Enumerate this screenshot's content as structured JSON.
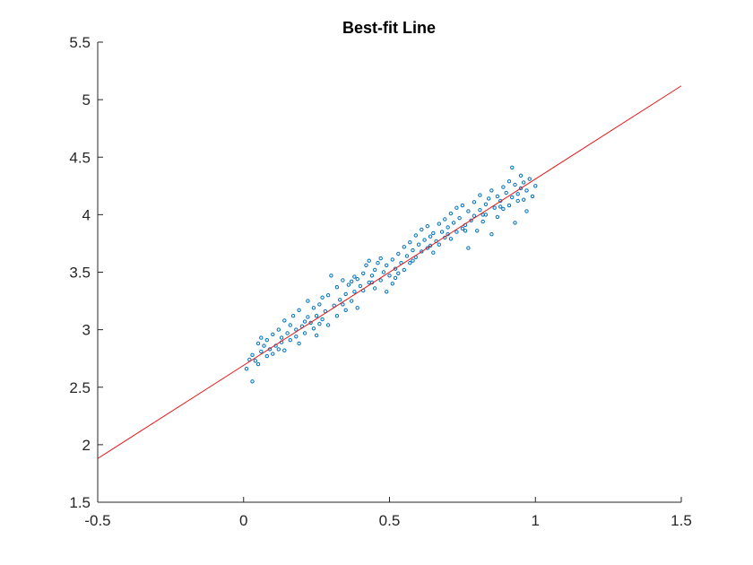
{
  "chart_data": {
    "type": "scatter",
    "title": "Best-fit Line",
    "xlabel": "",
    "ylabel": "",
    "xlim": [
      -0.5,
      1.5
    ],
    "ylim": [
      1.5,
      5.5
    ],
    "xticks": [
      -0.5,
      0,
      0.5,
      1,
      1.5
    ],
    "yticks": [
      1.5,
      2,
      2.5,
      3,
      3.5,
      4,
      4.5,
      5,
      5.5
    ],
    "xtick_labels": [
      "-0.5",
      "0",
      "0.5",
      "1",
      "1.5"
    ],
    "ytick_labels": [
      "1.5",
      "2",
      "2.5",
      "3",
      "3.5",
      "4",
      "4.5",
      "5",
      "5.5"
    ],
    "grid": false,
    "legend": "none",
    "series": [
      {
        "kind": "scatter",
        "color": "#0072BD",
        "points": [
          [
            0.01,
            2.66
          ],
          [
            0.02,
            2.74
          ],
          [
            0.03,
            2.78
          ],
          [
            0.03,
            2.55
          ],
          [
            0.04,
            2.73
          ],
          [
            0.05,
            2.88
          ],
          [
            0.05,
            2.7
          ],
          [
            0.06,
            2.93
          ],
          [
            0.07,
            2.86
          ],
          [
            0.08,
            2.77
          ],
          [
            0.08,
            2.91
          ],
          [
            0.09,
            2.83
          ],
          [
            0.1,
            2.96
          ],
          [
            0.1,
            2.79
          ],
          [
            0.11,
            2.86
          ],
          [
            0.12,
            2.83
          ],
          [
            0.12,
            3.0
          ],
          [
            0.13,
            2.93
          ],
          [
            0.14,
            2.82
          ],
          [
            0.14,
            3.08
          ],
          [
            0.15,
            2.97
          ],
          [
            0.16,
            2.91
          ],
          [
            0.16,
            3.04
          ],
          [
            0.17,
            3.12
          ],
          [
            0.18,
            2.94
          ],
          [
            0.18,
            3.0
          ],
          [
            0.19,
            3.17
          ],
          [
            0.19,
            2.88
          ],
          [
            0.2,
            3.03
          ],
          [
            0.21,
            2.97
          ],
          [
            0.22,
            3.11
          ],
          [
            0.22,
            3.25
          ],
          [
            0.23,
            3.06
          ],
          [
            0.24,
            3.01
          ],
          [
            0.24,
            3.19
          ],
          [
            0.25,
            3.12
          ],
          [
            0.25,
            2.95
          ],
          [
            0.26,
            3.22
          ],
          [
            0.27,
            3.28
          ],
          [
            0.27,
            3.09
          ],
          [
            0.28,
            3.16
          ],
          [
            0.29,
            3.04
          ],
          [
            0.29,
            3.3
          ],
          [
            0.3,
            3.47
          ],
          [
            0.31,
            3.21
          ],
          [
            0.32,
            3.37
          ],
          [
            0.32,
            3.12
          ],
          [
            0.33,
            3.26
          ],
          [
            0.34,
            3.43
          ],
          [
            0.35,
            3.31
          ],
          [
            0.35,
            3.17
          ],
          [
            0.36,
            3.39
          ],
          [
            0.37,
            3.42
          ],
          [
            0.37,
            3.25
          ],
          [
            0.38,
            3.33
          ],
          [
            0.39,
            3.44
          ],
          [
            0.39,
            3.19
          ],
          [
            0.4,
            3.38
          ],
          [
            0.41,
            3.49
          ],
          [
            0.41,
            3.34
          ],
          [
            0.42,
            3.56
          ],
          [
            0.43,
            3.41
          ],
          [
            0.43,
            3.6
          ],
          [
            0.44,
            3.47
          ],
          [
            0.45,
            3.36
          ],
          [
            0.45,
            3.52
          ],
          [
            0.46,
            3.58
          ],
          [
            0.47,
            3.43
          ],
          [
            0.47,
            3.62
          ],
          [
            0.48,
            3.5
          ],
          [
            0.49,
            3.33
          ],
          [
            0.49,
            3.56
          ],
          [
            0.5,
            3.47
          ],
          [
            0.51,
            3.61
          ],
          [
            0.51,
            3.4
          ],
          [
            0.52,
            3.53
          ],
          [
            0.53,
            3.66
          ],
          [
            0.53,
            3.49
          ],
          [
            0.54,
            3.58
          ],
          [
            0.55,
            3.72
          ],
          [
            0.55,
            3.52
          ],
          [
            0.56,
            3.64
          ],
          [
            0.57,
            3.58
          ],
          [
            0.57,
            3.76
          ],
          [
            0.58,
            3.69
          ],
          [
            0.59,
            3.82
          ],
          [
            0.59,
            3.63
          ],
          [
            0.6,
            3.74
          ],
          [
            0.61,
            3.87
          ],
          [
            0.61,
            3.68
          ],
          [
            0.62,
            3.78
          ],
          [
            0.63,
            3.71
          ],
          [
            0.63,
            3.9
          ],
          [
            0.64,
            3.81
          ],
          [
            0.65,
            3.67
          ],
          [
            0.65,
            3.84
          ],
          [
            0.66,
            3.77
          ],
          [
            0.67,
            3.92
          ],
          [
            0.67,
            3.74
          ],
          [
            0.68,
            3.85
          ],
          [
            0.69,
            3.96
          ],
          [
            0.69,
            3.8
          ],
          [
            0.7,
            3.89
          ],
          [
            0.71,
            3.79
          ],
          [
            0.71,
            4.01
          ],
          [
            0.72,
            3.93
          ],
          [
            0.73,
            3.85
          ],
          [
            0.73,
            4.06
          ],
          [
            0.74,
            3.97
          ],
          [
            0.75,
            3.88
          ],
          [
            0.75,
            4.08
          ],
          [
            0.76,
            3.91
          ],
          [
            0.77,
            4.03
          ],
          [
            0.77,
            3.71
          ],
          [
            0.78,
            3.95
          ],
          [
            0.79,
            4.11
          ],
          [
            0.79,
            3.99
          ],
          [
            0.8,
            3.86
          ],
          [
            0.81,
            4.04
          ],
          [
            0.81,
            4.17
          ],
          [
            0.82,
            3.94
          ],
          [
            0.83,
            4.09
          ],
          [
            0.83,
            4.0
          ],
          [
            0.84,
            4.14
          ],
          [
            0.85,
            3.83
          ],
          [
            0.85,
            4.21
          ],
          [
            0.86,
            4.06
          ],
          [
            0.87,
            4.16
          ],
          [
            0.87,
            3.98
          ],
          [
            0.88,
            4.12
          ],
          [
            0.89,
            4.24
          ],
          [
            0.89,
            4.05
          ],
          [
            0.9,
            4.19
          ],
          [
            0.91,
            4.08
          ],
          [
            0.91,
            4.29
          ],
          [
            0.92,
            4.41
          ],
          [
            0.92,
            4.15
          ],
          [
            0.93,
            3.93
          ],
          [
            0.93,
            4.26
          ],
          [
            0.94,
            4.18
          ],
          [
            0.95,
            4.34
          ],
          [
            0.95,
            4.23
          ],
          [
            0.96,
            4.13
          ],
          [
            0.96,
            4.28
          ],
          [
            0.97,
            4.21
          ],
          [
            0.97,
            4.03
          ],
          [
            0.98,
            4.31
          ],
          [
            0.99,
            4.16
          ],
          [
            1.0,
            4.25
          ],
          [
            0.06,
            2.81
          ],
          [
            0.13,
            2.89
          ],
          [
            0.21,
            3.07
          ],
          [
            0.26,
            3.05
          ],
          [
            0.34,
            3.22
          ],
          [
            0.38,
            3.46
          ],
          [
            0.44,
            3.41
          ],
          [
            0.52,
            3.45
          ],
          [
            0.58,
            3.6
          ],
          [
            0.64,
            3.73
          ],
          [
            0.7,
            3.83
          ],
          [
            0.76,
            3.86
          ],
          [
            0.82,
            4.0
          ],
          [
            0.88,
            4.07
          ],
          [
            0.94,
            4.12
          ]
        ]
      },
      {
        "kind": "line",
        "color": "#E41A1C",
        "x": [
          -0.5,
          1.5
        ],
        "y": [
          1.88,
          5.12
        ]
      }
    ]
  }
}
